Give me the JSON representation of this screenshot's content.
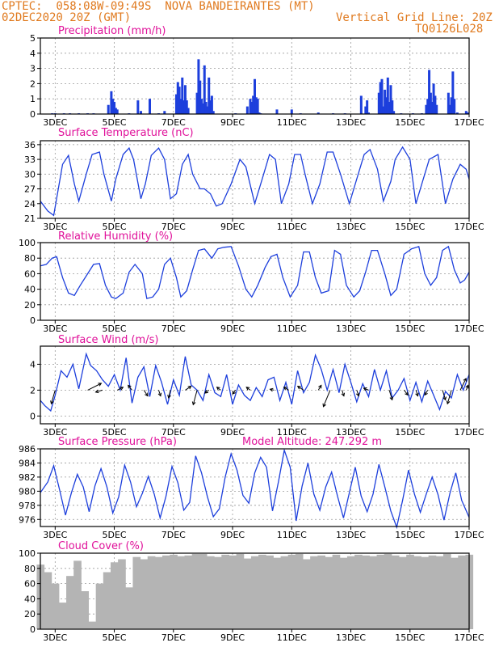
{
  "header": {
    "line1_left": "CPTEC:  058:08W-09:49S  NOVA BANDEIRANTES (MT)",
    "line2_left": "02DEC2020 20Z (GMT)",
    "line2_right": "Vertical Grid Line: 20Z",
    "line3_right": "TQ0126L028"
  },
  "colors": {
    "header": "#e07a1f",
    "title": "#e0119a",
    "series": "#1d3fdc",
    "bars": "#1d3fdc",
    "cloud": "#b4b4b4",
    "frame": "#000000",
    "grid": "#9a9a9a"
  },
  "x_ticks": [
    "3DEC",
    "5DEC",
    "7DEC",
    "9DEC",
    "11DEC",
    "13DEC",
    "15DEC",
    "17DEC"
  ],
  "x_range_days": [
    0,
    14.5
  ],
  "chart_data": [
    {
      "type": "bar",
      "title": "Precipitation (mm/h)",
      "ylim": [
        0,
        5
      ],
      "yticks": [
        "0",
        "1",
        "2",
        "3",
        "4",
        "5"
      ],
      "x_days": [
        0.4,
        0.5,
        0.8,
        1.0,
        1.3,
        1.6,
        1.8,
        2.3,
        2.4,
        2.45,
        2.5,
        2.55,
        2.6,
        3.0,
        3.3,
        3.4,
        3.7,
        4.0,
        4.2,
        4.6,
        4.65,
        4.7,
        4.75,
        4.8,
        4.85,
        4.9,
        4.95,
        5.0,
        5.3,
        5.35,
        5.4,
        5.45,
        5.5,
        5.55,
        5.6,
        5.65,
        5.7,
        5.75,
        5.8,
        5.85,
        6.6,
        7.0,
        7.1,
        7.15,
        7.2,
        7.25,
        7.3,
        7.35,
        7.4,
        7.45,
        8.0,
        8.5,
        8.8,
        9.4,
        9.9,
        10.3,
        10.85,
        11.0,
        11.05,
        11.1,
        11.45,
        11.5,
        11.55,
        11.6,
        11.65,
        11.7,
        11.75,
        11.8,
        11.85,
        11.9,
        11.95,
        12.2,
        12.6,
        12.9,
        13.05,
        13.1,
        13.15,
        13.2,
        13.25,
        13.3,
        13.35,
        13.4,
        13.8,
        13.85,
        13.9,
        13.95,
        14.0,
        14.1,
        14.4,
        14.45
      ],
      "values": [
        0.05,
        0.05,
        0.05,
        0.05,
        0.05,
        0.05,
        0.05,
        0.6,
        1.5,
        1.0,
        0.8,
        0.4,
        0.3,
        0.05,
        0.9,
        0.2,
        1.0,
        0.05,
        0.2,
        1.3,
        2.1,
        1.8,
        1.0,
        2.4,
        0.9,
        1.9,
        0.9,
        0.4,
        1.4,
        3.6,
        2.2,
        1.0,
        0.7,
        3.2,
        0.8,
        0.5,
        2.4,
        0.9,
        1.2,
        0.2,
        0.05,
        0.5,
        1.0,
        0.8,
        1.2,
        2.3,
        1.1,
        1.0,
        0.1,
        0.05,
        0.3,
        0.3,
        0.05,
        0.1,
        0.05,
        0.05,
        1.2,
        0.5,
        0.9,
        0.1,
        1.4,
        2.1,
        2.3,
        0.5,
        1.6,
        1.1,
        2.4,
        0.8,
        1.9,
        0.9,
        0.2,
        0.05,
        0.05,
        0.05,
        0.6,
        1.0,
        2.9,
        1.4,
        0.8,
        2.0,
        1.2,
        0.6,
        1.4,
        0.6,
        1.1,
        2.8,
        1.0,
        0.1,
        0.2,
        0.1
      ]
    },
    {
      "type": "line",
      "title": "Surface Temperature (nC)",
      "ylim": [
        21,
        36.8
      ],
      "yticks": [
        "21",
        "24",
        "27",
        "30",
        "33",
        "36"
      ],
      "series": [
        {
          "x_days": [
            0,
            0.25,
            0.45,
            0.55,
            0.75,
            0.95,
            1.15,
            1.3,
            1.55,
            1.75,
            2.0,
            2.15,
            2.4,
            2.55,
            2.8,
            3.0,
            3.15,
            3.4,
            3.55,
            3.75,
            4.0,
            4.2,
            4.4,
            4.6,
            4.8,
            5.0,
            5.15,
            5.4,
            5.55,
            5.75,
            5.95,
            6.15,
            6.45,
            6.75,
            6.95,
            7.25,
            7.5,
            7.75,
            7.95,
            8.15,
            8.4,
            8.6,
            8.8,
            8.95,
            9.2,
            9.45,
            9.7,
            9.9,
            10.15,
            10.45,
            10.7,
            10.95,
            11.15,
            11.4,
            11.6,
            11.85,
            12.0,
            12.25,
            12.5,
            12.7,
            12.95,
            13.15,
            13.45,
            13.7,
            13.95,
            14.2,
            14.4,
            14.5
          ],
          "values": [
            24.5,
            22.5,
            21.6,
            25,
            32,
            33.8,
            28,
            24.5,
            30,
            34,
            34.5,
            30,
            24.5,
            29,
            34,
            35.3,
            33,
            25,
            28,
            33.8,
            35.3,
            33,
            25,
            26,
            32,
            34,
            30,
            27,
            27,
            26,
            23.5,
            24,
            28,
            33,
            31.5,
            24,
            29,
            34,
            33,
            24,
            28,
            34,
            34,
            30,
            24,
            28,
            34.5,
            34.5,
            30,
            24,
            29,
            34,
            35,
            31,
            24.5,
            28.5,
            33,
            35.5,
            33,
            24,
            29,
            33,
            34,
            24,
            29,
            32,
            31,
            29
          ]
        }
      ]
    },
    {
      "type": "line",
      "title": "Relative Humidity (%)",
      "ylim": [
        0,
        100
      ],
      "yticks": [
        "0",
        "20",
        "40",
        "60",
        "80",
        "100"
      ],
      "series": [
        {
          "x_days": [
            0,
            0.2,
            0.4,
            0.55,
            0.75,
            0.95,
            1.15,
            1.35,
            1.6,
            1.8,
            2.0,
            2.2,
            2.4,
            2.55,
            2.8,
            3.0,
            3.2,
            3.45,
            3.6,
            3.8,
            4.0,
            4.2,
            4.4,
            4.6,
            4.75,
            4.95,
            5.15,
            5.35,
            5.55,
            5.8,
            6.0,
            6.2,
            6.45,
            6.7,
            6.95,
            7.15,
            7.35,
            7.6,
            7.8,
            8.0,
            8.2,
            8.45,
            8.7,
            8.9,
            9.1,
            9.3,
            9.5,
            9.75,
            9.95,
            10.15,
            10.35,
            10.6,
            10.8,
            11.0,
            11.2,
            11.4,
            11.65,
            11.85,
            12.05,
            12.3,
            12.55,
            12.8,
            13.0,
            13.2,
            13.4,
            13.6,
            13.8,
            14.0,
            14.2,
            14.35,
            14.5
          ],
          "values": [
            70,
            72,
            80,
            82,
            55,
            35,
            32,
            45,
            60,
            72,
            73,
            45,
            30,
            28,
            35,
            62,
            72,
            60,
            28,
            30,
            40,
            72,
            80,
            55,
            30,
            38,
            65,
            90,
            92,
            80,
            92,
            94,
            95,
            70,
            40,
            30,
            45,
            68,
            82,
            85,
            55,
            30,
            45,
            88,
            88,
            55,
            35,
            38,
            90,
            85,
            45,
            30,
            38,
            62,
            90,
            90,
            60,
            32,
            40,
            85,
            92,
            95,
            60,
            45,
            55,
            90,
            95,
            65,
            48,
            52,
            62
          ]
        }
      ]
    },
    {
      "type": "line",
      "title": "Surface Wind (m/s)",
      "ylim": [
        -0.6,
        5.4
      ],
      "yticks": [
        "0",
        "2",
        "4"
      ],
      "series": [
        {
          "x_days": [
            0,
            0.15,
            0.35,
            0.5,
            0.7,
            0.9,
            1.1,
            1.3,
            1.55,
            1.7,
            1.9,
            2.1,
            2.3,
            2.5,
            2.7,
            2.9,
            3.1,
            3.3,
            3.5,
            3.7,
            3.9,
            4.1,
            4.3,
            4.5,
            4.7,
            4.9,
            5.1,
            5.3,
            5.5,
            5.7,
            5.9,
            6.1,
            6.3,
            6.5,
            6.7,
            6.9,
            7.1,
            7.3,
            7.5,
            7.7,
            7.9,
            8.1,
            8.3,
            8.5,
            8.7,
            8.9,
            9.1,
            9.3,
            9.5,
            9.7,
            9.9,
            10.1,
            10.3,
            10.5,
            10.7,
            10.9,
            11.1,
            11.3,
            11.5,
            11.7,
            11.9,
            12.1,
            12.3,
            12.5,
            12.7,
            12.9,
            13.1,
            13.3,
            13.5,
            13.7,
            13.9,
            14.1,
            14.3,
            14.5
          ],
          "values": [
            1.2,
            0.8,
            0.4,
            1.6,
            3.5,
            3.0,
            4.0,
            2.1,
            4.8,
            3.9,
            3.5,
            2.8,
            2.3,
            3.2,
            2.0,
            4.5,
            1.0,
            3.0,
            3.8,
            1.5,
            3.9,
            2.6,
            0.9,
            2.8,
            1.6,
            4.6,
            2.4,
            2.0,
            1.2,
            3.2,
            1.8,
            1.5,
            3.2,
            0.9,
            2.4,
            1.6,
            1.2,
            2.2,
            1.5,
            2.8,
            3.0,
            1.2,
            2.6,
            0.9,
            3.5,
            1.8,
            2.6,
            4.7,
            3.6,
            2.0,
            3.6,
            1.8,
            4.0,
            2.6,
            1.1,
            2.5,
            1.5,
            3.6,
            2.0,
            3.5,
            1.4,
            2.0,
            2.9,
            1.2,
            2.6,
            1.1,
            2.7,
            1.6,
            0.5,
            1.9,
            1.4,
            3.2,
            2.0,
            3.2
          ]
        }
      ],
      "arrows": [
        {
          "x_days": 0.5,
          "u": -0.4,
          "v": -1.4
        },
        {
          "x_days": 1.6,
          "u": 1.4,
          "v": 0.7
        },
        {
          "x_days": 2.1,
          "u": -0.7,
          "v": -0.2
        },
        {
          "x_days": 2.6,
          "u": 0.6,
          "v": 0.3
        },
        {
          "x_days": 3.1,
          "u": -0.4,
          "v": 0.5
        },
        {
          "x_days": 3.5,
          "u": 0.4,
          "v": -0.6
        },
        {
          "x_days": 4.0,
          "u": 0.2,
          "v": -0.6
        },
        {
          "x_days": 4.4,
          "u": -0.2,
          "v": -0.8
        },
        {
          "x_days": 4.9,
          "u": 0.6,
          "v": 0.4
        },
        {
          "x_days": 5.3,
          "u": -0.4,
          "v": -1.5
        },
        {
          "x_days": 5.7,
          "u": -0.4,
          "v": -0.3
        },
        {
          "x_days": 6.1,
          "u": -0.4,
          "v": 0.3
        },
        {
          "x_days": 6.6,
          "u": -0.3,
          "v": -0.4
        },
        {
          "x_days": 7.1,
          "u": -0.4,
          "v": 0.3
        },
        {
          "x_days": 7.9,
          "u": -0.4,
          "v": 0.1
        },
        {
          "x_days": 8.4,
          "u": -0.5,
          "v": 0.3
        },
        {
          "x_days": 8.9,
          "u": -0.6,
          "v": 0.4
        },
        {
          "x_days": 9.4,
          "u": 0.3,
          "v": 0.5
        },
        {
          "x_days": 9.8,
          "u": -0.7,
          "v": -1.7
        },
        {
          "x_days": 10.2,
          "u": 0.2,
          "v": -0.6
        },
        {
          "x_days": 10.7,
          "u": 0.2,
          "v": -0.6
        },
        {
          "x_days": 11.1,
          "u": -0.5,
          "v": 0.2
        },
        {
          "x_days": 11.8,
          "u": 0.3,
          "v": -1.0
        },
        {
          "x_days": 12.3,
          "u": 0.4,
          "v": -0.5
        },
        {
          "x_days": 12.7,
          "u": 0.2,
          "v": -0.6
        },
        {
          "x_days": 13.1,
          "u": -0.3,
          "v": -0.5
        },
        {
          "x_days": 13.6,
          "u": 0.3,
          "v": -1.0
        },
        {
          "x_days": 13.9,
          "u": -0.4,
          "v": -1.4
        },
        {
          "x_days": 14.2,
          "u": 0.6,
          "v": 1.2
        },
        {
          "x_days": 14.4,
          "u": 0.2,
          "v": 0.5
        }
      ]
    },
    {
      "type": "line",
      "title": "Surface Pressure (hPa)",
      "subtitle": "Model Altitude: 247.292 m",
      "ylim": [
        975,
        986
      ],
      "yticks": [
        "976",
        "978",
        "980",
        "982",
        "984",
        "986"
      ],
      "series": [
        {
          "x_days": [
            0,
            0.25,
            0.45,
            0.65,
            0.85,
            1.05,
            1.25,
            1.45,
            1.65,
            1.85,
            2.05,
            2.25,
            2.45,
            2.65,
            2.85,
            3.05,
            3.25,
            3.45,
            3.65,
            3.85,
            4.05,
            4.25,
            4.45,
            4.65,
            4.85,
            5.05,
            5.25,
            5.45,
            5.65,
            5.85,
            6.05,
            6.25,
            6.45,
            6.65,
            6.85,
            7.05,
            7.25,
            7.45,
            7.65,
            7.85,
            8.05,
            8.25,
            8.45,
            8.65,
            8.85,
            9.05,
            9.25,
            9.45,
            9.65,
            9.85,
            10.05,
            10.25,
            10.45,
            10.65,
            10.85,
            11.05,
            11.25,
            11.45,
            11.65,
            11.85,
            12.05,
            12.25,
            12.45,
            12.65,
            12.85,
            13.05,
            13.25,
            13.45,
            13.65,
            13.85,
            14.05,
            14.25,
            14.5
          ],
          "values": [
            979.8,
            981.3,
            983.6,
            980.2,
            976.6,
            979.8,
            982.4,
            980.6,
            977.1,
            980.8,
            983.2,
            980.6,
            976.9,
            979.2,
            983.7,
            981.3,
            977.8,
            979.7,
            982.1,
            979.6,
            976.2,
            979.3,
            983.5,
            981.2,
            977.3,
            978.4,
            985.0,
            982.6,
            979.2,
            976.4,
            977.5,
            982.0,
            985.3,
            983.0,
            979.4,
            978.3,
            982.6,
            984.8,
            983.4,
            977.2,
            981.3,
            985.8,
            983.4,
            975.8,
            980.7,
            984.0,
            979.6,
            977.3,
            980.6,
            982.7,
            979.3,
            976.2,
            979.8,
            983.4,
            979.3,
            977.1,
            979.6,
            983.8,
            980.6,
            977.2,
            974.9,
            978.7,
            983.0,
            979.6,
            977.0,
            979.6,
            982.0,
            979.5,
            975.9,
            979.7,
            982.6,
            978.7,
            976.3
          ]
        }
      ]
    },
    {
      "type": "bar",
      "title": "Cloud Cover (%)",
      "ylim": [
        0,
        100
      ],
      "yticks": [
        "0",
        "20",
        "40",
        "60",
        "80",
        "100"
      ],
      "x_days": [
        0,
        0.25,
        0.5,
        0.75,
        1.0,
        1.25,
        1.5,
        1.75,
        2.0,
        2.25,
        2.5,
        2.75,
        3.0,
        3.25,
        3.5,
        3.75,
        4.0,
        4.25,
        4.5,
        4.75,
        5.0,
        5.25,
        5.5,
        5.75,
        6.0,
        6.25,
        6.5,
        6.75,
        7.0,
        7.25,
        7.5,
        7.75,
        8.0,
        8.25,
        8.5,
        8.75,
        9.0,
        9.25,
        9.5,
        9.75,
        10.0,
        10.25,
        10.5,
        10.75,
        11.0,
        11.25,
        11.5,
        11.75,
        12.0,
        12.25,
        12.5,
        12.75,
        13.0,
        13.25,
        13.5,
        13.75,
        14.0,
        14.25,
        14.5
      ],
      "values": [
        85,
        75,
        60,
        35,
        70,
        90,
        50,
        10,
        60,
        75,
        88,
        92,
        55,
        95,
        92,
        96,
        95,
        97,
        98,
        96,
        97,
        99,
        99,
        96,
        95,
        98,
        97,
        99,
        93,
        96,
        98,
        97,
        94,
        96,
        98,
        99,
        92,
        96,
        97,
        95,
        98,
        94,
        96,
        98,
        97,
        96,
        98,
        99,
        97,
        95,
        98,
        96,
        95,
        97,
        96,
        99,
        94,
        97,
        98
      ]
    }
  ]
}
